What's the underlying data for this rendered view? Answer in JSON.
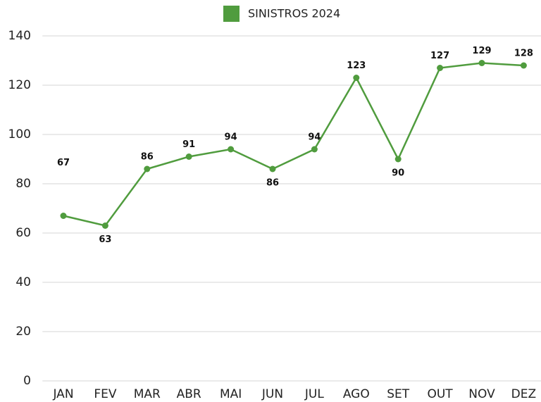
{
  "chart_data": {
    "type": "line",
    "categories": [
      "JAN",
      "FEV",
      "MAR",
      "ABR",
      "MAI",
      "JUN",
      "JUL",
      "AGO",
      "SET",
      "OUT",
      "NOV",
      "DEZ"
    ],
    "series": [
      {
        "name": "SINISTROS 2024",
        "color": "#509c3e",
        "values": [
          67,
          63,
          86,
          91,
          94,
          86,
          94,
          123,
          90,
          127,
          129,
          128
        ]
      }
    ],
    "ylim": [
      0,
      140
    ],
    "yticks": [
      0,
      20,
      40,
      60,
      80,
      100,
      120,
      140
    ],
    "grid": true,
    "legend": "top"
  }
}
